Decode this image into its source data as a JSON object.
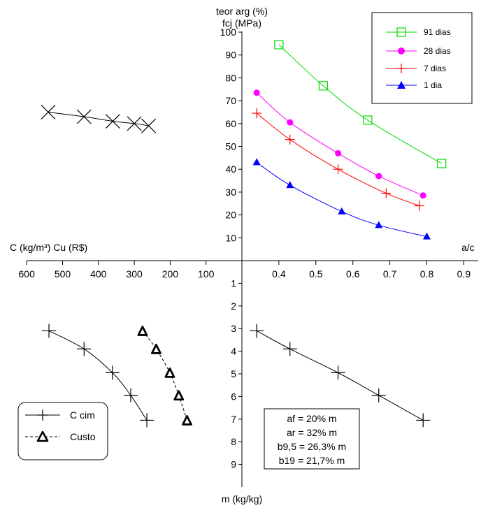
{
  "labels": {
    "y_top_1": "teor arg (%)",
    "y_top_2": "fcj (MPa)",
    "x_right": "a/c",
    "x_left": "C (kg/m³)  Cu (R$)",
    "y_bottom": "m (kg/kg)"
  },
  "ticks": {
    "fc": [
      "10",
      "20",
      "30",
      "40",
      "50",
      "60",
      "70",
      "80",
      "90",
      "100"
    ],
    "ac": [
      "0.4",
      "0.5",
      "0.6",
      "0.7",
      "0.8",
      "0.9"
    ],
    "cost": [
      "600",
      "500",
      "400",
      "300",
      "200",
      "100"
    ],
    "m": [
      "1",
      "2",
      "3",
      "4",
      "5",
      "6",
      "7",
      "8",
      "9"
    ]
  },
  "legend_top": {
    "entries": [
      "91 dias",
      "28 dias",
      "7 dias",
      "1 dia"
    ]
  },
  "legend_bottom": {
    "entries": [
      "C cim",
      "Custo"
    ]
  },
  "info_box": {
    "lines": [
      "af = 20% m",
      "ar = 32% m",
      "b9,5 = 26,3% m",
      "b19 = 21,7% m"
    ]
  },
  "colors": {
    "d91": "#00dd00",
    "d28": "#ff00ff",
    "d7": "#ff0000",
    "d1": "#0000ff",
    "axis": "#000000"
  },
  "chart_data": {
    "type": "scatter",
    "quadrants": {
      "top_right": {
        "xlabel": "a/c",
        "ylabel": "fcj (MPa)",
        "xlim": [
          0.3,
          0.9
        ],
        "ylim": [
          0,
          100
        ],
        "series": [
          {
            "name": "91 dias",
            "marker": "square",
            "x": [
              0.4,
              0.52,
              0.64,
              0.84
            ],
            "y": [
              94.5,
              76.5,
              61.5,
              42.5
            ]
          },
          {
            "name": "28 dias",
            "marker": "circle",
            "x": [
              0.34,
              0.43,
              0.56,
              0.67,
              0.79
            ],
            "y": [
              73.5,
              60.5,
              47,
              37,
              28.5
            ]
          },
          {
            "name": "7 dias",
            "marker": "plus",
            "x": [
              0.34,
              0.43,
              0.56,
              0.69,
              0.78
            ],
            "y": [
              64.5,
              53,
              40,
              29.5,
              24
            ]
          },
          {
            "name": "1 dia",
            "marker": "triangle",
            "x": [
              0.34,
              0.43,
              0.57,
              0.67,
              0.8
            ],
            "y": [
              43,
              33,
              21.5,
              15.5,
              10.5
            ]
          }
        ]
      },
      "top_left": {
        "ylabel": "teor arg (%)",
        "series": [
          {
            "marker": "x",
            "x": [
              540,
              440,
              360,
              300,
              260
            ],
            "y": [
              65,
              63,
              61,
              60,
              59
            ]
          }
        ]
      },
      "bottom_right": {
        "xlabel": "a/c",
        "ylabel": "m (kg/kg)",
        "xlim": [
          0.3,
          0.9
        ],
        "ylim": [
          0,
          9
        ],
        "series": [
          {
            "marker": "plus",
            "x": [
              0.34,
              0.43,
              0.56,
              0.67,
              0.79
            ],
            "y": [
              3.1,
              3.9,
              4.95,
              5.95,
              7.05
            ]
          }
        ]
      },
      "bottom_left": {
        "xlabel": "C (kg/m³)  Cu (R$)",
        "ylabel": "m (kg/kg)",
        "xlim": [
          0,
          600
        ],
        "series": [
          {
            "name": "C cim",
            "marker": "plus",
            "x": [
              538,
              440,
              361,
              310,
              265
            ],
            "y": [
              3.1,
              3.9,
              4.95,
              5.95,
              7.05
            ]
          },
          {
            "name": "Custo",
            "marker": "triangle",
            "x": [
              277,
              239,
              201,
              176,
              153
            ],
            "y": [
              3.1,
              3.9,
              4.95,
              5.95,
              7.05
            ]
          }
        ]
      }
    }
  }
}
